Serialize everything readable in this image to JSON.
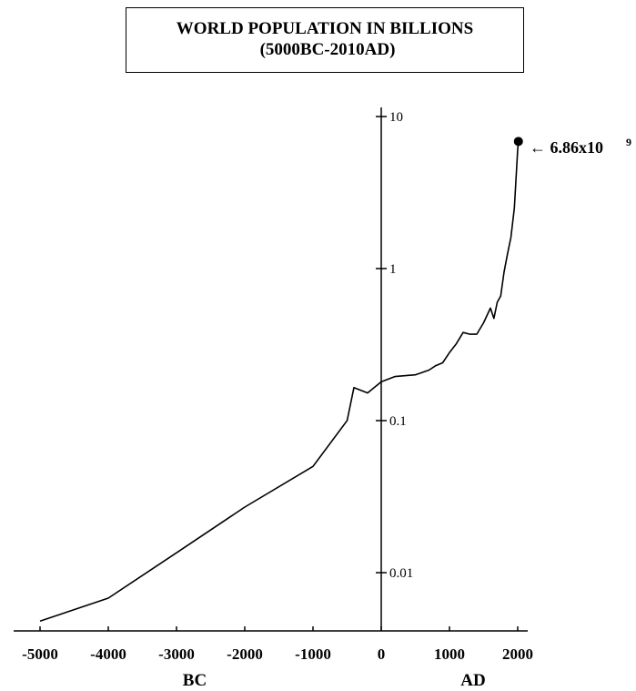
{
  "chart_data": {
    "type": "line",
    "title": "WORLD POPULATION IN BILLIONS",
    "subtitle": "(5000BC-2010AD)",
    "y_scale": "log",
    "ylim": [
      0.0045,
      12
    ],
    "xlim": [
      -5000,
      2100
    ],
    "x_ticks": [
      -5000,
      -4000,
      -3000,
      -2000,
      -1000,
      0,
      1000,
      2000
    ],
    "x_tick_labels": [
      "-5000",
      "-4000",
      "-3000",
      "-2000",
      "-1000",
      "0",
      "1000",
      "2000"
    ],
    "y_ticks": [
      0.01,
      0.1,
      1,
      10
    ],
    "y_tick_labels": [
      "0.01",
      "0.1",
      "1",
      "10"
    ],
    "era_labels": {
      "left": "BC",
      "right": "AD"
    },
    "x": [
      -5000,
      -4000,
      -3000,
      -2000,
      -1000,
      -500,
      -400,
      -200,
      0,
      200,
      500,
      700,
      800,
      900,
      1000,
      1100,
      1200,
      1300,
      1400,
      1500,
      1600,
      1650,
      1700,
      1750,
      1800,
      1850,
      1900,
      1950,
      2000,
      2010
    ],
    "values": [
      0.0048,
      0.0068,
      0.0135,
      0.027,
      0.05,
      0.1,
      0.165,
      0.152,
      0.18,
      0.195,
      0.2,
      0.215,
      0.23,
      0.24,
      0.28,
      0.32,
      0.38,
      0.37,
      0.37,
      0.44,
      0.55,
      0.47,
      0.6,
      0.66,
      0.95,
      1.25,
      1.6,
      2.5,
      6.1,
      6.86
    ],
    "end_marker": {
      "x": 2010,
      "y": 6.86
    },
    "annotation": {
      "text": "← 6.86x10",
      "superscript": "9"
    }
  }
}
